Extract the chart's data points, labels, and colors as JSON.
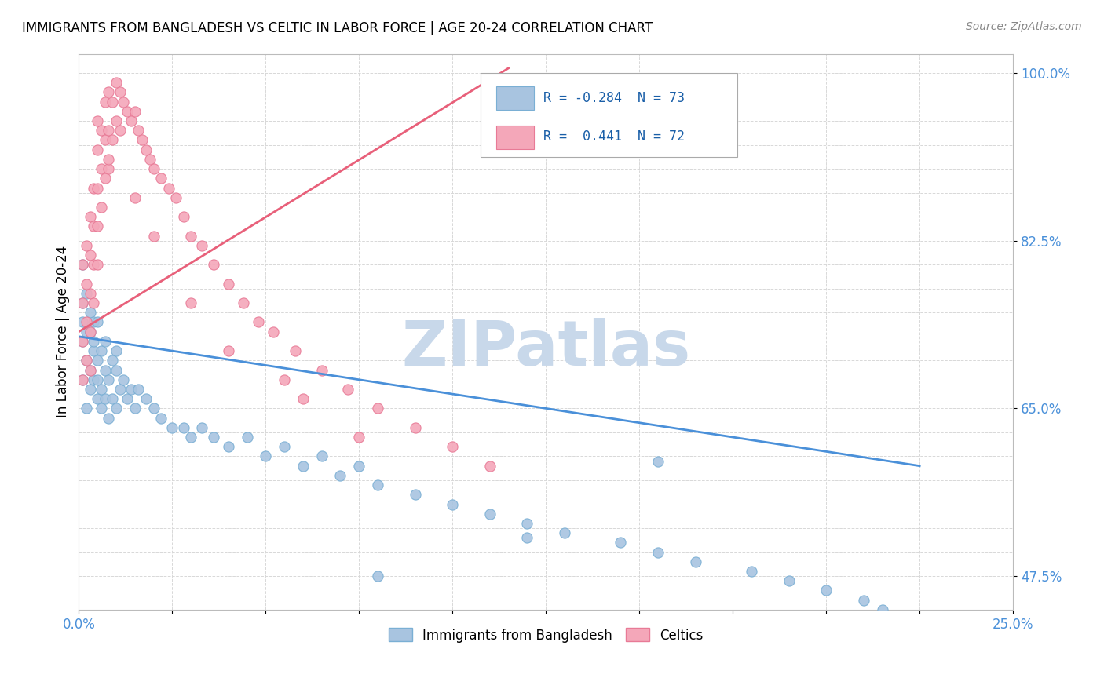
{
  "title": "IMMIGRANTS FROM BANGLADESH VS CELTIC IN LABOR FORCE | AGE 20-24 CORRELATION CHART",
  "source_text": "Source: ZipAtlas.com",
  "ylabel": "In Labor Force | Age 20-24",
  "xlim": [
    0.0,
    0.25
  ],
  "ylim": [
    0.44,
    1.02
  ],
  "R_bangladesh": -0.284,
  "N_bangladesh": 73,
  "R_celtic": 0.441,
  "N_celtic": 72,
  "dot_color_bangladesh": "#a8c4e0",
  "dot_edge_bangladesh": "#7aafd4",
  "dot_color_celtic": "#f4a7b9",
  "dot_edge_celtic": "#e87a96",
  "line_color_bangladesh": "#4a90d9",
  "line_color_celtic": "#e8607a",
  "watermark_text": "ZIPatlas",
  "watermark_color": "#c8d8ea",
  "legend_R_color": "#1a5fa8",
  "background_color": "#ffffff",
  "grid_color": "#d8d8d8",
  "bangladesh_x": [
    0.001,
    0.001,
    0.001,
    0.001,
    0.001,
    0.002,
    0.002,
    0.002,
    0.002,
    0.003,
    0.003,
    0.003,
    0.003,
    0.004,
    0.004,
    0.004,
    0.004,
    0.005,
    0.005,
    0.005,
    0.005,
    0.006,
    0.006,
    0.006,
    0.007,
    0.007,
    0.007,
    0.008,
    0.008,
    0.009,
    0.009,
    0.01,
    0.01,
    0.01,
    0.011,
    0.012,
    0.013,
    0.014,
    0.015,
    0.016,
    0.018,
    0.02,
    0.022,
    0.025,
    0.028,
    0.03,
    0.033,
    0.036,
    0.04,
    0.045,
    0.05,
    0.055,
    0.06,
    0.065,
    0.07,
    0.075,
    0.08,
    0.09,
    0.1,
    0.11,
    0.12,
    0.13,
    0.145,
    0.155,
    0.165,
    0.18,
    0.19,
    0.2,
    0.21,
    0.215,
    0.155,
    0.12,
    0.08
  ],
  "bangladesh_y": [
    0.72,
    0.68,
    0.76,
    0.8,
    0.74,
    0.7,
    0.73,
    0.77,
    0.65,
    0.75,
    0.69,
    0.73,
    0.67,
    0.71,
    0.74,
    0.68,
    0.72,
    0.66,
    0.7,
    0.74,
    0.68,
    0.67,
    0.71,
    0.65,
    0.69,
    0.72,
    0.66,
    0.68,
    0.64,
    0.7,
    0.66,
    0.69,
    0.65,
    0.71,
    0.67,
    0.68,
    0.66,
    0.67,
    0.65,
    0.67,
    0.66,
    0.65,
    0.64,
    0.63,
    0.63,
    0.62,
    0.63,
    0.62,
    0.61,
    0.62,
    0.6,
    0.61,
    0.59,
    0.6,
    0.58,
    0.59,
    0.57,
    0.56,
    0.55,
    0.54,
    0.53,
    0.52,
    0.51,
    0.5,
    0.49,
    0.48,
    0.47,
    0.46,
    0.45,
    0.44,
    0.595,
    0.515,
    0.475
  ],
  "celtic_x": [
    0.001,
    0.001,
    0.001,
    0.001,
    0.002,
    0.002,
    0.002,
    0.002,
    0.003,
    0.003,
    0.003,
    0.003,
    0.003,
    0.004,
    0.004,
    0.004,
    0.004,
    0.005,
    0.005,
    0.005,
    0.005,
    0.006,
    0.006,
    0.006,
    0.007,
    0.007,
    0.007,
    0.008,
    0.008,
    0.008,
    0.009,
    0.009,
    0.01,
    0.01,
    0.011,
    0.011,
    0.012,
    0.013,
    0.014,
    0.015,
    0.016,
    0.017,
    0.018,
    0.019,
    0.02,
    0.022,
    0.024,
    0.026,
    0.028,
    0.03,
    0.033,
    0.036,
    0.04,
    0.044,
    0.048,
    0.052,
    0.058,
    0.065,
    0.072,
    0.08,
    0.09,
    0.1,
    0.11,
    0.04,
    0.06,
    0.075,
    0.03,
    0.055,
    0.02,
    0.015,
    0.008,
    0.005
  ],
  "celtic_y": [
    0.76,
    0.72,
    0.8,
    0.68,
    0.82,
    0.78,
    0.74,
    0.7,
    0.85,
    0.81,
    0.77,
    0.73,
    0.69,
    0.88,
    0.84,
    0.8,
    0.76,
    0.92,
    0.88,
    0.84,
    0.8,
    0.94,
    0.9,
    0.86,
    0.97,
    0.93,
    0.89,
    0.98,
    0.94,
    0.9,
    0.97,
    0.93,
    0.99,
    0.95,
    0.98,
    0.94,
    0.97,
    0.96,
    0.95,
    0.96,
    0.94,
    0.93,
    0.92,
    0.91,
    0.9,
    0.89,
    0.88,
    0.87,
    0.85,
    0.83,
    0.82,
    0.8,
    0.78,
    0.76,
    0.74,
    0.73,
    0.71,
    0.69,
    0.67,
    0.65,
    0.63,
    0.61,
    0.59,
    0.71,
    0.66,
    0.62,
    0.76,
    0.68,
    0.83,
    0.87,
    0.91,
    0.95
  ],
  "line_bangladesh_x0": 0.0,
  "line_bangladesh_x1": 0.225,
  "line_bangladesh_y0": 0.725,
  "line_bangladesh_y1": 0.59,
  "line_celtic_x0": 0.0,
  "line_celtic_x1": 0.115,
  "line_celtic_y0": 0.73,
  "line_celtic_y1": 1.005
}
